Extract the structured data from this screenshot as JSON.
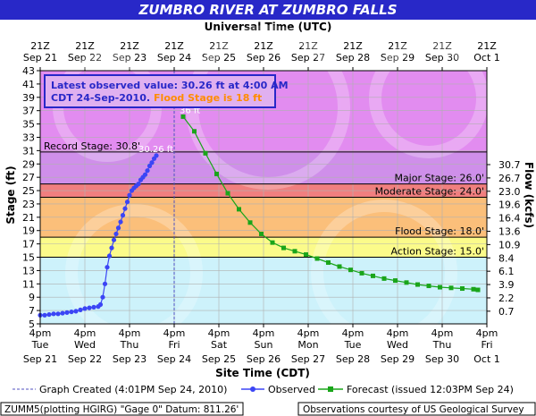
{
  "chart_data": {
    "type": "line",
    "title": "ZUMBRO RIVER AT ZUMBRO FALLS",
    "top_axis_title": "Universal Time (UTC)",
    "xlabel": "Site Time (CDT)",
    "ylabel": "Stage (ft)",
    "y2label": "Flow (kcfs)",
    "ylim": [
      5,
      43
    ],
    "y_ticks": [
      5,
      7,
      9,
      11,
      13,
      15,
      17,
      19,
      21,
      23,
      25,
      27,
      29,
      31,
      33,
      35,
      37,
      39,
      41,
      43
    ],
    "bottom_ticks": [
      {
        "t": 0,
        "line1": "4pm",
        "line2": "Tue",
        "line3": "Sep 21"
      },
      {
        "t": 1,
        "line1": "4pm",
        "line2": "Wed",
        "line3": "Sep 22"
      },
      {
        "t": 2,
        "line1": "4pm",
        "line2": "Thu",
        "line3": "Sep 23"
      },
      {
        "t": 3,
        "line1": "4pm",
        "line2": "Fri",
        "line3": "Sep 24"
      },
      {
        "t": 4,
        "line1": "4pm",
        "line2": "Sat",
        "line3": "Sep 25"
      },
      {
        "t": 5,
        "line1": "4pm",
        "line2": "Sun",
        "line3": "Sep 26"
      },
      {
        "t": 6,
        "line1": "4pm",
        "line2": "Mon",
        "line3": "Sep 27"
      },
      {
        "t": 7,
        "line1": "4pm",
        "line2": "Tue",
        "line3": "Sep 28"
      },
      {
        "t": 8,
        "line1": "4pm",
        "line2": "Wed",
        "line3": "Sep 29"
      },
      {
        "t": 9,
        "line1": "4pm",
        "line2": "Thu",
        "line3": "Sep 30"
      },
      {
        "t": 10,
        "line1": "4pm",
        "line2": "Fri",
        "line3": "Oct 1"
      }
    ],
    "top_ticks": [
      {
        "t": 0,
        "line1": "21Z",
        "line2": "Sep 21"
      },
      {
        "t": 1,
        "line1": "21Z",
        "line2": "Sep 22"
      },
      {
        "t": 2,
        "line1": "21Z",
        "line2": "Sep 23"
      },
      {
        "t": 3,
        "line1": "21Z",
        "line2": "Sep 24"
      },
      {
        "t": 4,
        "line1": "21Z",
        "line2": "Sep 25"
      },
      {
        "t": 5,
        "line1": "21Z",
        "line2": "Sep 26"
      },
      {
        "t": 6,
        "line1": "21Z",
        "line2": "Sep 27"
      },
      {
        "t": 7,
        "line1": "21Z",
        "line2": "Sep 28"
      },
      {
        "t": 8,
        "line1": "21Z",
        "line2": "Sep 29"
      },
      {
        "t": 9,
        "line1": "21Z",
        "line2": "Sep 30"
      },
      {
        "t": 10,
        "line1": "21Z",
        "line2": "Oct 1"
      }
    ],
    "flow_ticks": [
      {
        "stage": 28.9,
        "label": "30.7"
      },
      {
        "stage": 26.9,
        "label": "26.7"
      },
      {
        "stage": 24.9,
        "label": "23.0"
      },
      {
        "stage": 22.9,
        "label": "19.6"
      },
      {
        "stage": 20.9,
        "label": "16.4"
      },
      {
        "stage": 18.9,
        "label": "13.6"
      },
      {
        "stage": 16.9,
        "label": "10.9"
      },
      {
        "stage": 14.9,
        "label": "8.4"
      },
      {
        "stage": 12.9,
        "label": "6.1"
      },
      {
        "stage": 10.9,
        "label": "3.9"
      },
      {
        "stage": 8.9,
        "label": "2.2"
      },
      {
        "stage": 6.9,
        "label": "0.7"
      }
    ],
    "bands": [
      {
        "name": "record",
        "from": 30.8,
        "to": 43,
        "color": "#e28cf0"
      },
      {
        "name": "major",
        "from": 26,
        "to": 30.8,
        "color": "#cf8fea"
      },
      {
        "name": "major-moderate",
        "from": 24,
        "to": 26,
        "color": "#f07f7f"
      },
      {
        "name": "moderate-flood",
        "from": 18,
        "to": 24,
        "color": "#fbbf7a"
      },
      {
        "name": "action",
        "from": 15,
        "to": 18,
        "color": "#fbfb8a"
      },
      {
        "name": "normal",
        "from": 5,
        "to": 15,
        "color": "#cdf2fb"
      }
    ],
    "stage_lines": [
      {
        "label": "Record Stage: 30.8'",
        "value": 30.8,
        "side": "left"
      },
      {
        "label": "Major Stage: 26.0'",
        "value": 26.0,
        "side": "right"
      },
      {
        "label": "Moderate Stage: 24.0'",
        "value": 24.0,
        "side": "right"
      },
      {
        "label": "Flood Stage: 18.0'",
        "value": 18.0,
        "side": "right"
      },
      {
        "label": "Action Stage: 15.0'",
        "value": 15.0,
        "side": "right"
      }
    ],
    "series": [
      {
        "name": "Observed",
        "color": "#3b45f5",
        "marker": "circle",
        "x": [
          0.0,
          0.1,
          0.2,
          0.3,
          0.4,
          0.5,
          0.6,
          0.7,
          0.8,
          0.9,
          1.0,
          1.1,
          1.2,
          1.3,
          1.35,
          1.4,
          1.45,
          1.5,
          1.55,
          1.6,
          1.65,
          1.7,
          1.75,
          1.8,
          1.85,
          1.9,
          1.95,
          2.0,
          2.05,
          2.1,
          2.15,
          2.2,
          2.25,
          2.3,
          2.35,
          2.4,
          2.45,
          2.5,
          2.55,
          2.6
        ],
        "y": [
          6.3,
          6.3,
          6.4,
          6.5,
          6.5,
          6.6,
          6.7,
          6.8,
          6.9,
          7.1,
          7.3,
          7.4,
          7.5,
          7.6,
          7.9,
          9.0,
          11.0,
          13.5,
          15.2,
          16.4,
          17.6,
          18.5,
          19.4,
          20.3,
          21.3,
          22.3,
          23.3,
          24.3,
          25.0,
          25.4,
          25.7,
          26.0,
          26.6,
          27.0,
          27.4,
          28.0,
          28.7,
          29.2,
          29.8,
          30.26
        ]
      },
      {
        "name": "Forecast (issued 12:03PM Sep 24)",
        "color": "#1aa51a",
        "marker": "square",
        "x": [
          3.2,
          3.45,
          3.7,
          3.95,
          4.2,
          4.45,
          4.7,
          4.95,
          5.2,
          5.45,
          5.7,
          5.95,
          6.2,
          6.45,
          6.7,
          6.95,
          7.2,
          7.45,
          7.7,
          7.95,
          8.2,
          8.45,
          8.7,
          8.95,
          9.2,
          9.45,
          9.7,
          9.8
        ],
        "y": [
          36.1,
          33.9,
          30.6,
          27.5,
          24.6,
          22.2,
          20.2,
          18.5,
          17.2,
          16.4,
          15.9,
          15.4,
          14.8,
          14.2,
          13.6,
          13.1,
          12.6,
          12.2,
          11.8,
          11.5,
          11.2,
          10.9,
          10.7,
          10.5,
          10.4,
          10.3,
          10.2,
          10.1
        ]
      }
    ],
    "latest_point_label": "30.26 ft",
    "forecast_peak_label": "36 ft",
    "created_marker_t": 3.0,
    "info_box": {
      "line1": "Latest observed value: 30.26 ft at 4:00 AM",
      "line2_prefix": "CDT 24-Sep-2010.",
      "line2_flood": "Flood Stage is 18 ft"
    },
    "legend": {
      "created": "Graph Created (4:01PM Sep 24, 2010)",
      "observed": "Observed",
      "forecast": "Forecast (issued 12:03PM Sep 24)"
    },
    "footer": {
      "left": "ZUMM5(plotting HGIRG) \"Gage 0\" Datum: 811.26'",
      "right": "Observations courtesy of US Geological Survey"
    },
    "colors": {
      "title_bg": "#2828c8",
      "title_text": "#ffffff",
      "observed": "#3b45f5",
      "forecast": "#1aa51a",
      "info_border": "#2828c8",
      "info_text": "#2828c8",
      "flood_text": "#ff8c00"
    }
  }
}
